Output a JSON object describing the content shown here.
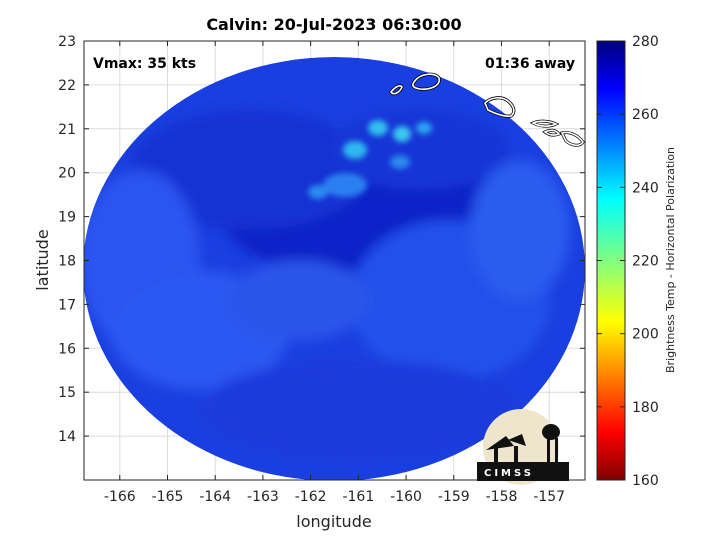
{
  "title": "Calvin: 20-Jul-2023 06:30:00",
  "annotations": {
    "vmax": "Vmax: 35 kts",
    "time_away": "01:36 away"
  },
  "xaxis": {
    "label": "longitude",
    "ticks": [
      "-166",
      "-165",
      "-164",
      "-163",
      "-162",
      "-161",
      "-160",
      "-159",
      "-158",
      "-157"
    ],
    "range": [
      -166.75,
      -156.25
    ]
  },
  "yaxis": {
    "label": "latitude",
    "ticks": [
      "14",
      "15",
      "16",
      "17",
      "18",
      "19",
      "20",
      "21",
      "22",
      "23"
    ],
    "range": [
      13,
      23
    ]
  },
  "colorbar": {
    "label": "Brightness Temp - Horizontal Polarization",
    "ticks": [
      "160",
      "180",
      "200",
      "220",
      "240",
      "260",
      "280"
    ],
    "range": [
      160,
      280
    ],
    "colormap": "jet"
  },
  "logo": {
    "text": "CIMSS"
  },
  "chart_data": {
    "type": "heatmap",
    "title": "Calvin: 20-Jul-2023 06:30:00",
    "xlabel": "longitude",
    "ylabel": "latitude",
    "xlim": [
      -166.75,
      -156.25
    ],
    "ylim": [
      13,
      23
    ],
    "grid": true,
    "clim": [
      160,
      280
    ],
    "swath_center": [
      -161.6,
      18.0
    ],
    "typical_value": 262,
    "warm_patch_values": [
      240,
      252
    ]
  }
}
